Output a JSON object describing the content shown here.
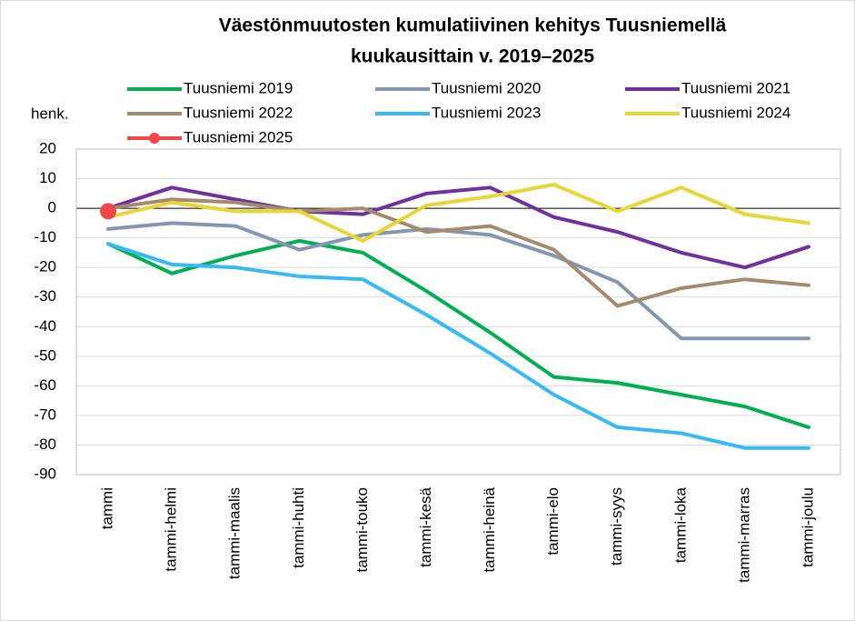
{
  "chart_data": {
    "type": "line",
    "title": [
      "Väestönmuutosten kumulatiivinen kehitys Tuusniemellä",
      "kuukausittain v. 2019–2025"
    ],
    "ylabel": "henk.",
    "categories": [
      "tammi",
      "tammi-helmi",
      "tammi-maalis",
      "tammi-huhti",
      "tammi-touko",
      "tammi-kesä",
      "tammi-heinä",
      "tammi-elo",
      "tammi-syys",
      "tammi-loka",
      "tammi-marras",
      "tammi-joulu"
    ],
    "series": [
      {
        "name": "Tuusniemi 2019",
        "color": "#00b050",
        "values": [
          -12,
          -22,
          -16,
          -11,
          -15,
          -28,
          -42,
          -57,
          -59,
          -63,
          -67,
          -74
        ]
      },
      {
        "name": "Tuusniemi 2020",
        "color": "#8497b0",
        "values": [
          -7,
          -5,
          -6,
          -14,
          -9,
          -7,
          -9,
          -16,
          -25,
          -44,
          -44,
          -44
        ]
      },
      {
        "name": "Tuusniemi 2021",
        "color": "#7030a0",
        "values": [
          0,
          7,
          3,
          -1,
          -2,
          5,
          7,
          -3,
          -8,
          -15,
          -20,
          -13
        ]
      },
      {
        "name": "Tuusniemi 2022",
        "color": "#a68a6d",
        "values": [
          0,
          3,
          2,
          -1,
          0,
          -8,
          -6,
          -14,
          -33,
          -27,
          -24,
          -26
        ]
      },
      {
        "name": "Tuusniemi 2023",
        "color": "#36b9f5",
        "values": [
          -12,
          -19,
          -20,
          -23,
          -24,
          -36,
          -49,
          -63,
          -74,
          -76,
          -81,
          -81
        ]
      },
      {
        "name": "Tuusniemi 2024",
        "color": "#e8d536",
        "values": [
          -3,
          2,
          -1,
          -1,
          -11,
          1,
          4,
          8,
          -1,
          7,
          -2,
          -5
        ]
      },
      {
        "name": "Tuusniemi 2025",
        "color": "#f04848",
        "marker": true,
        "values": [
          -1,
          null,
          null,
          null,
          null,
          null,
          null,
          null,
          null,
          null,
          null,
          null
        ]
      }
    ],
    "ylim": [
      -90,
      20
    ],
    "yticks": [
      -90,
      -80,
      -70,
      -60,
      -50,
      -40,
      -30,
      -20,
      -10,
      0,
      10,
      20
    ],
    "grid": true
  }
}
